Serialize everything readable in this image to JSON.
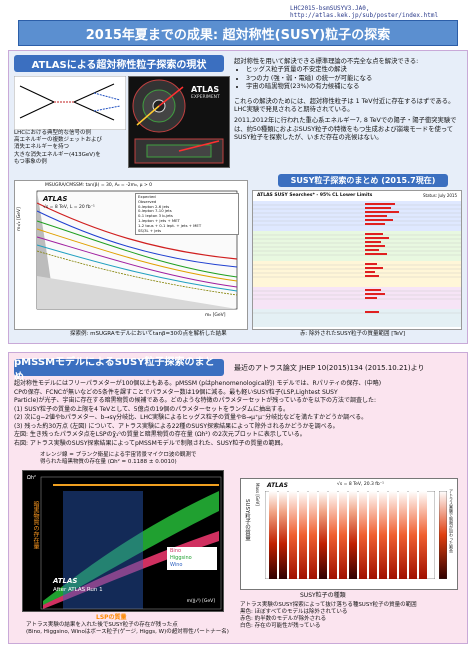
{
  "header": {
    "ref": "LHC2015-bsmSUSYV3.JA0,   http://atlas.kek.jp/sub/poster/index.html"
  },
  "title": "2015年夏までの成果: 超対称性(SUSY)粒子の探索",
  "section1": {
    "heading": "ATLASによる超対称性粒子探索の現状",
    "intro": "超対称性を用いて解決できる標準理論の不完全な点を解決できる:",
    "points": [
      "ヒッグス粒子質量の不安定性の解決",
      "3つの力 (強・弱・電磁) の統一が可能になる",
      "宇宙の暗黒物質(23%)の有力候補になる"
    ],
    "para": "これらの解決のためには、超対称性粒子は 1 TeV付近に存在するはずである。LHC実験で発見されると期待されている。",
    "para2": "2011,2012年に行われた重心系エネルギー7, 8 TeVでの陽子・陽子衝突実験では、約50種類におよぶSUSY粒子の特徴をもつ生成および崩壊モードを使ってSUSY粒子を探索したが、いまだ存在の兆候はない。",
    "diagram_caption1": "LHCにおける典型的な信号の例\n高エネルギーの複数ジェットおよび\n消失エネルギーを持つ",
    "diagram_caption2": "大きな消失エネルギー(413GeV)を\nもつ事象の例",
    "atlas_logo": "ATLAS",
    "atlas_logo_sub": "EXPERIMENT",
    "plot_caption": "探索例: mSUGRAモデルにおいてtanβ=30の点を解析した結果",
    "summary_heading": "SUSY粒子探索のまとめ (2015.7現在)",
    "summary_caption": "赤: 除外されたSUSY粒子の質量範囲 [TeV]",
    "summary_table_title": "ATLAS SUSY Searches* - 95% CL Lower Limits",
    "summary_table_sub": "Status: July 2015",
    "plot": {
      "title": "MSUGRA/CMSSM: tan(β) = 30, A₀ = -2m₀, μ > 0",
      "atlas": "ATLAS",
      "lumi": "√s = 8 TeV, L = 20 fb⁻¹",
      "ylabel": "m₁/₂ [GeV]",
      "xlabel": "m₀ [GeV]",
      "legend": [
        "Expected",
        "Observed",
        "0-lepton 2-6 jets",
        "0-lepton 7-10 jets",
        "0-1 lepton 3 b-jets",
        "1-lepton + jets + MET",
        "1-2 taus + 0-1 lept. + jets + MET",
        "SS/3L + jets"
      ]
    }
  },
  "section2": {
    "heading": "pMSSMモデルによるSUSY粒子探索のまとめ",
    "ref": "最近のアトラス論文 JHEP 10(2015)134 (2015.10.21)より",
    "lines": [
      "超対称性モデルにはフリーパラメターが100個以上もある。pMSSM (pはphenomenological的) モデルでは、Rパリティの保存、(中略)",
      "CPの保存、FCNCが無いなどの5条件を課すことでパラメター数は19個に減る。最も軽いSUSY粒子(LSP,Lightest SUSY",
      "Particle)が光子、宇宙に存在する暗黒物質の候補である。どのような特徴のパラメターセットが残っているかを以下の方法で調査した:",
      "(1) SUSY粒子の質量の上限を4 TeVとして、5億点の19個のパラメターセットをランダムに抽出する。",
      "(2) 次にg−2値やbパラメター、b→sγ分岐比、LHC実験によるヒッグス粒子の質量やB→μ⁺μ⁻分岐比などを満たすかどうか調べる。",
      "(3) 残った約30万点 (左図) について、アトラス実験による22種のSUSY探索結果によって除外されるかどうかを調べる。",
      "左図: 生き残ったパラメタ点をLSPのχ̃₁⁰の質量と暗黒物質の存在量 (Ωh²) の2次元プロットに表示している。",
      "右図: アトラス実験のSUSY探索結果によってpMSSMモデルで制限された、SUSY粒子の質量の範囲。"
    ],
    "left_annot": "オレンジ線 = プランク衛星による宇宙背景マイクロ波の観測で\n得られた暗黒物質の存在量 (Ωh² = 0.1188 ± 0.0010)",
    "left_caption": "アトラス実験の結果を入れた後でSUSY粒子の存在が残った点\n(Bino, Higgsino, Winoはボース粒子(ゲージ, Higgs, W)の超対称性パートナー名)",
    "left_plot": {
      "ylabel": "暗黒物質の存在量",
      "xlabel": "LSPの質量",
      "xunit": "m(χ̃₁⁰) [GeV]",
      "legend": [
        "Bino",
        "Higgsino",
        "Wino"
      ],
      "atlas": "ATLAS",
      "run": "After ATLAS Run 1",
      "y_axis": "Ωh²"
    },
    "right_plot": {
      "atlas": "ATLAS",
      "info": "√s = 8 TeV, 20.3 fb⁻¹",
      "ylabel": "SUSY粒子の質量",
      "xlabel": "SUSY粒子の種類",
      "side": "アトラス実験で制限が加わった割合",
      "ylim_label": "Mass [GeV]"
    },
    "right_caption": "アトラス実験のSUSY探索によって抜け落ちる種SUSY粒子の質量の範囲\n黒色: ほぼすべてのモデルは除外されている\n赤色: 約半数のモデルが除外される\n白色: 存在の可能性が残っている"
  },
  "colors": {
    "title_bg": "#5b8fd0",
    "section_bg": "#3b6fc0",
    "panel1": "#e7eef9",
    "panel2": "#fbe4ef",
    "plot_orange": "#f0a020"
  }
}
